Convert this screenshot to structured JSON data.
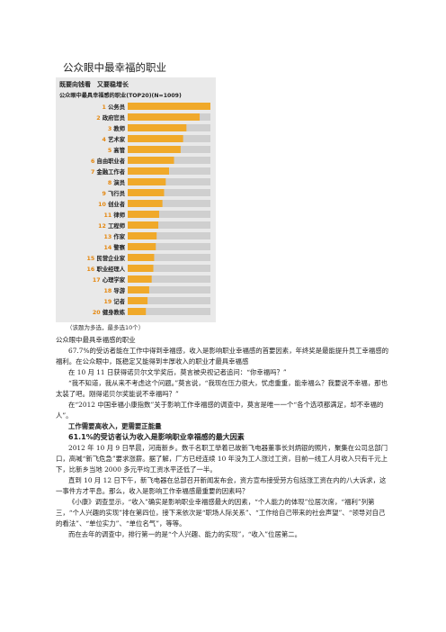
{
  "page": {
    "title": "公众眼中最幸福的职业"
  },
  "figure": {
    "headline": "既要向钱看　又要稳增长",
    "subtitle": "公众眼中最具幸福感的职业(TOP20)(N=1009)",
    "note": "（该题为多选，最多选10个）",
    "colors": {
      "bar": "#f0a92a",
      "label": "#e4870f",
      "track": "#cfcfcf",
      "panel": "#e9e9e9"
    }
  },
  "chart_data": {
    "type": "bar",
    "orientation": "horizontal",
    "title": "公众眼中最具幸福感的职业(TOP20)(N=1009)",
    "categories": [
      "1 公务员",
      "2 政府官员",
      "3 教师",
      "4 艺术家",
      "5 高管",
      "6 自由职业者",
      "7 金融工作者",
      "8 演员",
      "9 飞行员",
      "10 创业者",
      "11 律师",
      "12 工程师",
      "13 作家",
      "14 警察",
      "15 民营企业家",
      "16 职业经理人",
      "17 心理学家",
      "18 导游",
      "19 记者",
      "20 健身教练"
    ],
    "values": [
      100,
      87,
      71,
      67,
      64,
      56,
      50,
      46,
      44,
      42,
      38,
      37,
      35,
      34,
      32,
      31,
      29,
      26,
      24,
      22
    ],
    "xlim": [
      0,
      100
    ],
    "grid": false,
    "legend": "none"
  },
  "article": {
    "lines": [
      {
        "text": "公众眼中最具幸福感的职业",
        "style": "plain"
      },
      {
        "text": "67.7%的受访者能在工作中得到幸福感，收入是影响职业幸福感的首要因素，年终奖是最能提升员工幸福感的福利。在公众眼中，既稳定又能得到丰厚收入的职业才最具幸福感",
        "style": "indent"
      },
      {
        "text": "在 10 月 11 日获得诺贝尔文学奖后，莫言被央视记者追问：“你幸福吗？”",
        "style": "indent"
      },
      {
        "text": "“我不知道，我从来不考虑这个问题。”莫言说，“我现在压力很大，忧虑重重，能幸福么？我要说不幸福，那也太装了吧。刚得诺贝尔奖能说不幸福吗？”",
        "style": "indent"
      },
      {
        "text": "在“2012 中国幸福小康指数”关于影响工作幸福感的调查中，莫言是唯一一个“各个选项都满足，却不幸福的人”。",
        "style": "indent"
      },
      {
        "text": "工作需要高收入，更需要正能量",
        "style": "bold"
      },
      {
        "text": "61.1%的受访者认为收入是影响职业幸福感的最大因素",
        "style": "highlight"
      },
      {
        "text": "2012 年 10 月 9 日早晨，河南新乡。数千名职工举着已故新飞电器董事长刘炳银的照片，聚集在公司总部门口，高喊“新飞危急”要求涨薪。据了解，厂方已经连续 10 年没为工人涨过工资，目前一线工人月收入只有千元上下，比新乡当地 2000 多元平均工资水平还低了一半。",
        "style": "indent"
      },
      {
        "text": "直到 10 月 12 日下午，新飞电器在总部召开新闻发布会，资方宣布接受劳方包括涨工资在内的八大诉求，这一事件方才平息。那么，收入是影响工作幸福感最重要的因素吗？",
        "style": "indent"
      },
      {
        "text": "《小康》调查显示，“收入”确实是影响职业幸福感最大的因素，“个人能力的体现”位居次席，“福利”列第三，“个人兴趣的实现”排在第四位，接下来依次是“职场人际关系”、“工作给自己带来的社会声望”、“领导对自己的看法”、“单位实力”、“单位名气”，等等。",
        "style": "indent"
      },
      {
        "text": "而在去年的调查中，排行第一的是“个人兴趣、能力的实现”，“收入”位居第二。",
        "style": "indent"
      }
    ]
  }
}
